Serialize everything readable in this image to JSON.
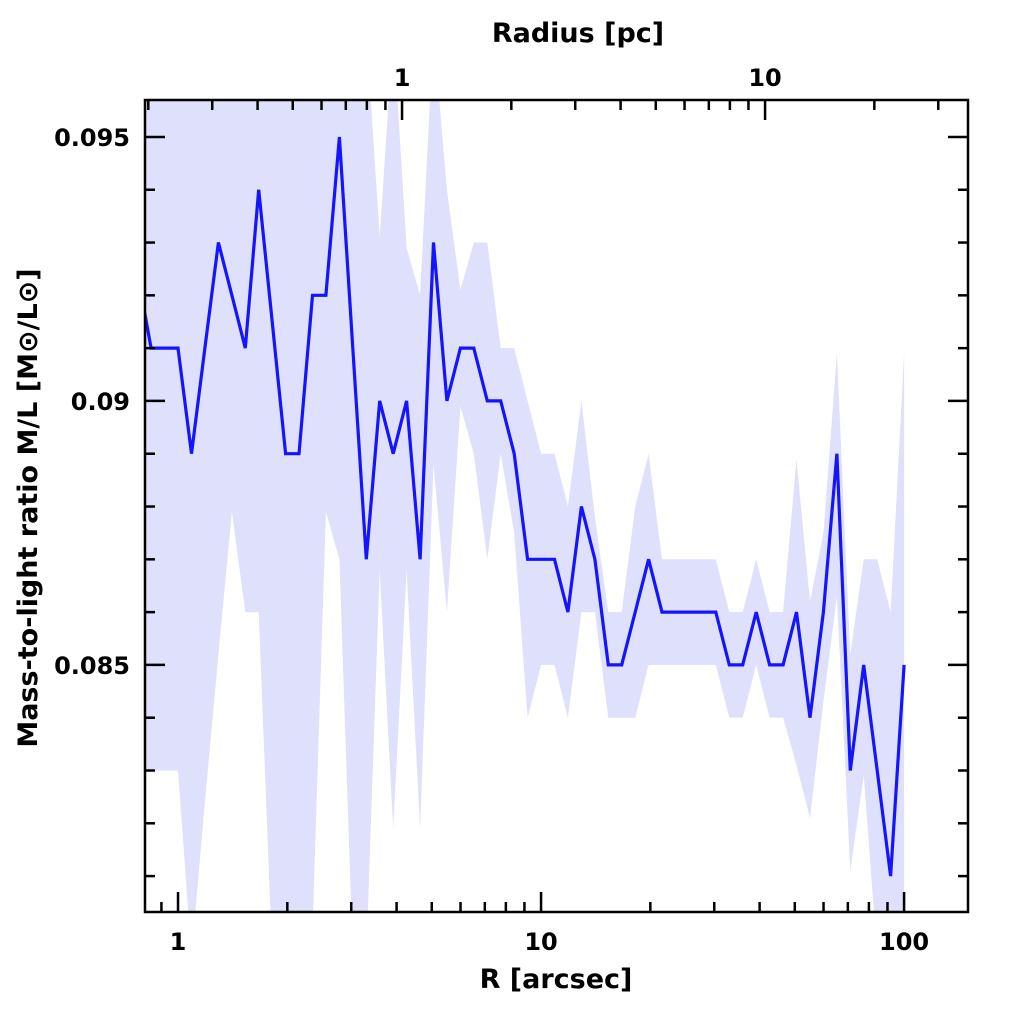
{
  "chart_data": {
    "type": "line",
    "xlabel": "R [arcsec]",
    "ylabel": "Mass-to-light ratio M/L [M⊙/L⊙]",
    "top_xlabel": "Radius [pc]",
    "xscale": "log",
    "xlim": [
      0.811,
      150
    ],
    "ylim": [
      0.08032,
      0.0957
    ],
    "pc_per_arcsec": 0.2415,
    "grid": false,
    "x_tick_labels": [
      {
        "value": 1,
        "label": "1"
      },
      {
        "value": 10,
        "label": "10"
      },
      {
        "value": 100,
        "label": "100"
      }
    ],
    "top_tick_labels": [
      {
        "value": 1,
        "label": "1"
      },
      {
        "value": 10,
        "label": "10"
      }
    ],
    "y_tick_labels": [
      {
        "value": 0.085,
        "label": "0.085"
      },
      {
        "value": 0.09,
        "label": "0.09"
      },
      {
        "value": 0.095,
        "label": "0.095"
      }
    ],
    "colors": {
      "line": "#1414ff",
      "band": "#dfe0fb",
      "axes": "#000000"
    },
    "x": [
      0.774,
      0.843,
      0.918,
      1,
      1.089,
      1.186,
      1.292,
      1.407,
      1.532,
      1.668,
      1.817,
      1.978,
      2.154,
      2.346,
      2.555,
      2.783,
      3.03,
      3.3,
      3.594,
      3.914,
      4.262,
      4.642,
      5.055,
      5.505,
      5.995,
      6.529,
      7.11,
      7.743,
      8.432,
      9.183,
      10,
      10.89,
      11.86,
      12.92,
      14.07,
      15.32,
      16.68,
      18.17,
      19.78,
      21.54,
      23.46,
      25.55,
      27.83,
      30.3,
      33.0,
      35.94,
      39.14,
      42.62,
      46.42,
      50.55,
      55.05,
      59.95,
      65.29,
      71.1,
      77.43,
      84.32,
      91.83,
      100
    ],
    "series": [
      {
        "name": "M/L",
        "values": [
          0.0924,
          0.091,
          0.091,
          0.091,
          0.089,
          0.091,
          0.093,
          0.092,
          0.091,
          0.094,
          0.0915,
          0.089,
          0.089,
          0.092,
          0.092,
          0.095,
          0.091,
          0.087,
          0.09,
          0.089,
          0.09,
          0.087,
          0.093,
          0.09,
          0.091,
          0.091,
          0.09,
          0.09,
          0.089,
          0.087,
          0.087,
          0.087,
          0.086,
          0.088,
          0.087,
          0.085,
          0.085,
          0.086,
          0.087,
          0.086,
          0.086,
          0.086,
          0.086,
          0.086,
          0.085,
          0.085,
          0.086,
          0.085,
          0.085,
          0.086,
          0.084,
          0.086,
          0.089,
          0.083,
          0.085,
          0.083,
          0.081,
          0.085
        ]
      },
      {
        "name": "upper",
        "values": [
          0.097,
          0.097,
          0.097,
          0.097,
          0.097,
          0.097,
          0.097,
          0.097,
          0.097,
          0.097,
          0.097,
          0.097,
          0.097,
          0.097,
          0.097,
          0.097,
          0.097,
          0.097,
          0.0931,
          0.097,
          0.0929,
          0.092,
          0.097,
          0.094,
          0.0921,
          0.093,
          0.093,
          0.091,
          0.091,
          0.09,
          0.089,
          0.089,
          0.088,
          0.09,
          0.0878,
          0.086,
          0.086,
          0.088,
          0.089,
          0.087,
          0.087,
          0.087,
          0.087,
          0.087,
          0.086,
          0.086,
          0.087,
          0.086,
          0.086,
          0.0889,
          0.0862,
          0.0875,
          0.0909,
          0.0852,
          0.087,
          0.087,
          0.086,
          0.0909
        ]
      },
      {
        "name": "lower",
        "values": [
          0.083,
          0.083,
          0.083,
          0.083,
          0.0795,
          0.0824,
          0.0852,
          0.0879,
          0.086,
          0.086,
          0.0795,
          0.0795,
          0.0795,
          0.08,
          0.0879,
          0.087,
          0.0795,
          0.0795,
          0.0868,
          0.0819,
          0.0868,
          0.0819,
          0.0888,
          0.086,
          0.0899,
          0.089,
          0.087,
          0.089,
          0.0875,
          0.084,
          0.085,
          0.085,
          0.084,
          0.086,
          0.086,
          0.084,
          0.084,
          0.084,
          0.085,
          0.085,
          0.085,
          0.085,
          0.085,
          0.085,
          0.084,
          0.084,
          0.085,
          0.084,
          0.084,
          0.0831,
          0.0821,
          0.0843,
          0.0863,
          0.0811,
          0.0829,
          0.0795,
          0.0795,
          0.08
        ]
      }
    ]
  }
}
